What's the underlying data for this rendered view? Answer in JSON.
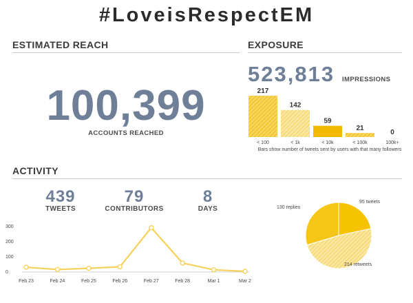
{
  "title": "#LoveisRespectEM",
  "reach": {
    "heading": "ESTIMATED REACH",
    "value": "100,399",
    "caption": "ACCOUNTS REACHED"
  },
  "exposure": {
    "heading": "EXPOSURE",
    "value": "523,813",
    "caption": "IMPRESSIONS"
  },
  "activity": {
    "heading": "ACTIVITY",
    "stats": [
      {
        "value": "439",
        "label": "TWEETS"
      },
      {
        "value": "79",
        "label": "CONTRIBUTORS"
      },
      {
        "value": "8",
        "label": "DAYS"
      }
    ]
  },
  "colors": {
    "accent": "#f5c000",
    "accent_light": "#f7d66a",
    "number": "#6e7f97"
  },
  "chart_data": [
    {
      "type": "bar",
      "categories": [
        "< 100",
        "< 1k",
        "< 10k",
        "< 100k",
        "100k+"
      ],
      "values": [
        217,
        142,
        59,
        21,
        0
      ],
      "value_labels": [
        "217",
        "142",
        "59",
        "21",
        "0"
      ],
      "note": "Bars show number of tweets sent by users with that many followers",
      "ylim": [
        0,
        217
      ]
    },
    {
      "type": "line",
      "categories": [
        "Feb 23",
        "Feb 24",
        "Feb 25",
        "Feb 26",
        "Feb 27",
        "Feb 28",
        "Mar 1",
        "Mar 2"
      ],
      "values": [
        27,
        12,
        20,
        30,
        288,
        55,
        10,
        0
      ],
      "yticks": [
        0,
        100,
        200,
        300
      ],
      "ylim": [
        0,
        300
      ],
      "grid": false
    },
    {
      "type": "pie",
      "slices": [
        {
          "label": "95 tweets",
          "value": 95
        },
        {
          "label": "214 retweets",
          "value": 214
        },
        {
          "label": "130 replies",
          "value": 130
        }
      ]
    }
  ]
}
